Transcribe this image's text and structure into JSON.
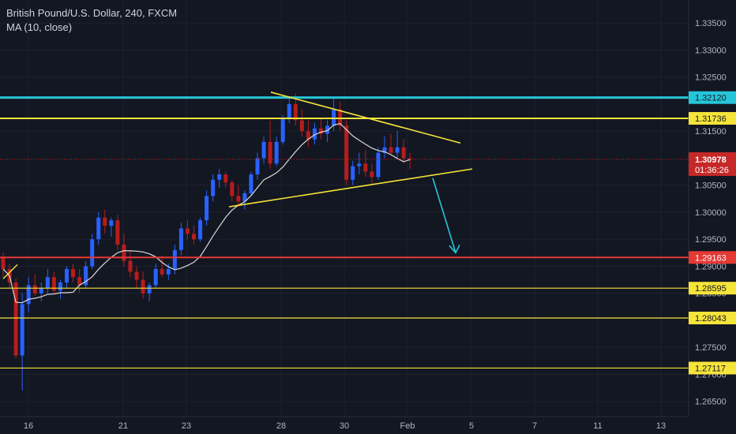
{
  "header": {
    "title": "British Pound/U.S. Dollar, 240, FXCM",
    "indicator": "MA (10, close)"
  },
  "colors": {
    "background": "#131722",
    "up_candle": "#2962ff",
    "down_candle": "#b71c1c",
    "ma_line": "#d9d9d9",
    "cyan_level": "#26c6da",
    "yellow_level": "#f5e43a",
    "red_level": "#e53935",
    "price_tag": "#c62828",
    "axis_text": "#b2b5be"
  },
  "chart_data": {
    "type": "candlestick",
    "ylim": [
      1.2635,
      1.3375
    ],
    "y_ticks": [
      "1.33500",
      "1.33000",
      "1.32500",
      "1.31500",
      "1.30500",
      "1.30000",
      "1.29500",
      "1.29000",
      "1.28500",
      "1.27500",
      "1.27000",
      "1.26500"
    ],
    "x_ticks": [
      "16",
      "21",
      "23",
      "28",
      "30",
      "Feb",
      "5",
      "7",
      "11",
      "13"
    ],
    "levels": [
      {
        "label": "1.32120",
        "value": 1.3212,
        "color": "cyan"
      },
      {
        "label": "1.31736",
        "value": 1.31736,
        "color": "yellow"
      },
      {
        "label": "1.29163",
        "value": 1.29163,
        "color": "red"
      },
      {
        "label": "1.28595",
        "value": 1.28595,
        "color": "yellow"
      },
      {
        "label": "1.28043",
        "value": 1.28043,
        "color": "yellow"
      },
      {
        "label": "1.27117",
        "value": 1.27117,
        "color": "yellow"
      }
    ],
    "current_price": {
      "label": "1.30978",
      "value": 1.30978
    },
    "countdown": "01:36:26",
    "candles": [
      [
        1.2916,
        1.2925,
        1.288,
        1.2895
      ],
      [
        1.2895,
        1.2905,
        1.286,
        1.287
      ],
      [
        1.287,
        1.2878,
        1.273,
        1.2735
      ],
      [
        1.2735,
        1.285,
        1.267,
        1.283
      ],
      [
        1.283,
        1.288,
        1.2815,
        1.2865
      ],
      [
        1.2865,
        1.2885,
        1.2845,
        1.285
      ],
      [
        1.285,
        1.287,
        1.2835,
        1.286
      ],
      [
        1.286,
        1.2895,
        1.285,
        1.288
      ],
      [
        1.288,
        1.289,
        1.285,
        1.2855
      ],
      [
        1.2855,
        1.2875,
        1.284,
        1.287
      ],
      [
        1.287,
        1.29,
        1.286,
        1.2895
      ],
      [
        1.2895,
        1.2905,
        1.287,
        1.288
      ],
      [
        1.288,
        1.2895,
        1.285,
        1.2865
      ],
      [
        1.2865,
        1.291,
        1.286,
        1.29
      ],
      [
        1.29,
        1.296,
        1.2895,
        1.295
      ],
      [
        1.295,
        1.3,
        1.294,
        1.299
      ],
      [
        1.299,
        1.3005,
        1.296,
        1.2975
      ],
      [
        1.2975,
        1.299,
        1.2955,
        1.2985
      ],
      [
        1.2985,
        1.2995,
        1.293,
        1.294
      ],
      [
        1.294,
        1.296,
        1.29,
        1.291
      ],
      [
        1.291,
        1.293,
        1.288,
        1.289
      ],
      [
        1.289,
        1.29,
        1.286,
        1.2875
      ],
      [
        1.2875,
        1.289,
        1.284,
        1.285
      ],
      [
        1.285,
        1.287,
        1.2835,
        1.2865
      ],
      [
        1.2865,
        1.2905,
        1.286,
        1.2895
      ],
      [
        1.2895,
        1.292,
        1.288,
        1.2885
      ],
      [
        1.2885,
        1.2905,
        1.2875,
        1.2895
      ],
      [
        1.2895,
        1.294,
        1.2885,
        1.293
      ],
      [
        1.293,
        1.298,
        1.292,
        1.297
      ],
      [
        1.297,
        1.2985,
        1.295,
        1.296
      ],
      [
        1.296,
        1.2975,
        1.294,
        1.295
      ],
      [
        1.295,
        1.299,
        1.2945,
        1.2985
      ],
      [
        1.2985,
        1.304,
        1.2975,
        1.303
      ],
      [
        1.303,
        1.307,
        1.302,
        1.306
      ],
      [
        1.306,
        1.308,
        1.3045,
        1.307
      ],
      [
        1.307,
        1.3075,
        1.3045,
        1.3055
      ],
      [
        1.3055,
        1.306,
        1.302,
        1.303
      ],
      [
        1.303,
        1.305,
        1.301,
        1.302
      ],
      [
        1.302,
        1.304,
        1.3005,
        1.3035
      ],
      [
        1.3035,
        1.3075,
        1.303,
        1.307
      ],
      [
        1.307,
        1.311,
        1.306,
        1.31
      ],
      [
        1.31,
        1.314,
        1.309,
        1.313
      ],
      [
        1.313,
        1.317,
        1.308,
        1.309
      ],
      [
        1.309,
        1.314,
        1.3085,
        1.313
      ],
      [
        1.313,
        1.318,
        1.3125,
        1.3175
      ],
      [
        1.3175,
        1.3215,
        1.3165,
        1.32
      ],
      [
        1.32,
        1.322,
        1.316,
        1.317
      ],
      [
        1.317,
        1.319,
        1.314,
        1.315
      ],
      [
        1.315,
        1.317,
        1.312,
        1.3135
      ],
      [
        1.3135,
        1.3165,
        1.3125,
        1.3155
      ],
      [
        1.3155,
        1.3175,
        1.3135,
        1.3145
      ],
      [
        1.3145,
        1.317,
        1.313,
        1.316
      ],
      [
        1.316,
        1.321,
        1.315,
        1.319
      ],
      [
        1.319,
        1.3205,
        1.315,
        1.316
      ],
      [
        1.316,
        1.317,
        1.305,
        1.306
      ],
      [
        1.306,
        1.3095,
        1.305,
        1.3085
      ],
      [
        1.3085,
        1.311,
        1.307,
        1.309
      ],
      [
        1.309,
        1.3115,
        1.3065,
        1.3075
      ],
      [
        1.3075,
        1.309,
        1.305,
        1.3065
      ],
      [
        1.3065,
        1.312,
        1.306,
        1.311
      ],
      [
        1.311,
        1.314,
        1.31,
        1.312
      ],
      [
        1.312,
        1.3145,
        1.3105,
        1.311
      ],
      [
        1.311,
        1.315,
        1.31,
        1.312
      ],
      [
        1.312,
        1.3135,
        1.309,
        1.31
      ],
      [
        1.31,
        1.311,
        1.308,
        1.3098
      ]
    ]
  }
}
